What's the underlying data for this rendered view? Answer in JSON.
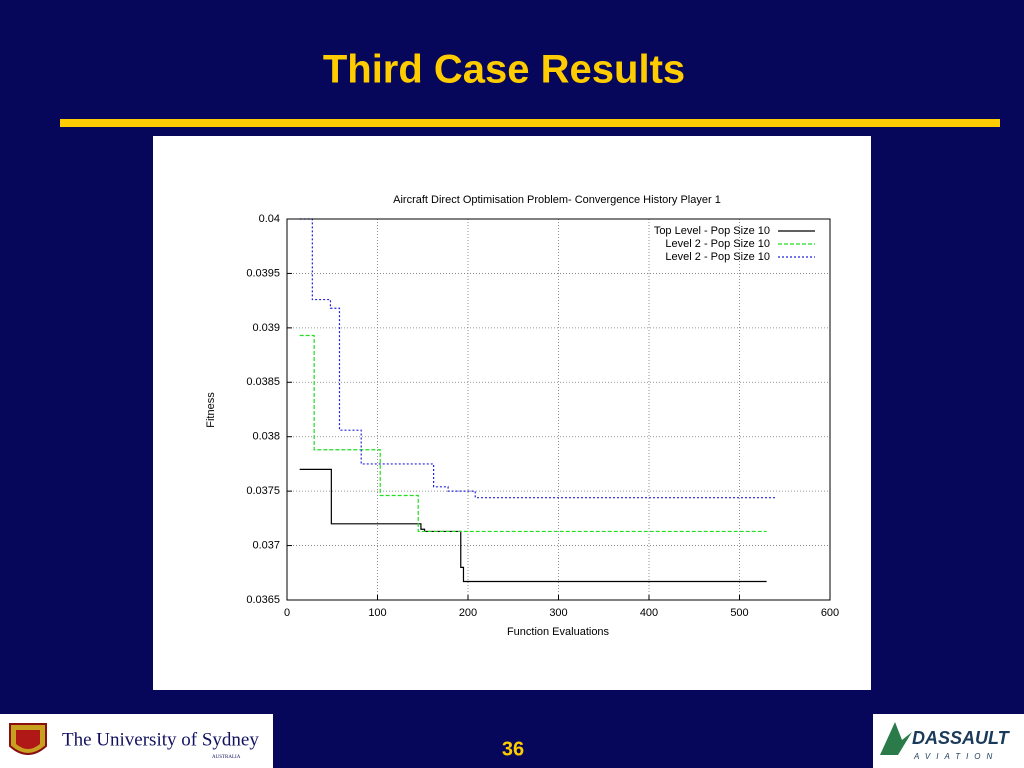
{
  "slide": {
    "title": "Third Case Results",
    "page_number": "36",
    "left_logo": {
      "name": "The University of Sydney",
      "country": "AUSTRALIA"
    },
    "right_logo": {
      "name": "DASSAULT",
      "sub": "AVIATION"
    }
  },
  "chart_data": {
    "type": "line",
    "title": "Aircraft Direct Optimisation Problem- Convergence History Player 1",
    "x_label": "Function Evaluations",
    "y_label": "Fitness",
    "xlim": [
      0,
      600
    ],
    "xticks": [
      0,
      100,
      200,
      300,
      400,
      500,
      600
    ],
    "ylim": [
      0.0365,
      0.04
    ],
    "yticks": [
      0.0365,
      0.037,
      0.0375,
      0.038,
      0.0385,
      0.039,
      0.0395,
      0.04
    ],
    "grid": true,
    "legend": "top-right",
    "series": [
      {
        "name": "Top Level - Pop Size 10",
        "color": "#000000",
        "line_style": "solid",
        "x": [
          14,
          49,
          49,
          148,
          148,
          152,
          152,
          192,
          192,
          195,
          195,
          530
        ],
        "values": [
          0.0377,
          0.0377,
          0.0372,
          0.0372,
          0.03715,
          0.03715,
          0.03713,
          0.03713,
          0.0368,
          0.0368,
          0.03667,
          0.03667
        ]
      },
      {
        "name": "Level 2 - Pop Size 10",
        "color": "#22dd22",
        "line_style": "dashed",
        "x": [
          14,
          30,
          30,
          103,
          103,
          145,
          145,
          530
        ],
        "values": [
          0.03893,
          0.03893,
          0.03788,
          0.03788,
          0.03746,
          0.03746,
          0.03713,
          0.03713
        ]
      },
      {
        "name": "Level 2 - Pop Size 10",
        "color": "#2222dd",
        "line_style": "dotted",
        "x": [
          14,
          28,
          28,
          48,
          48,
          58,
          58,
          82,
          82,
          162,
          162,
          178,
          178,
          208,
          208,
          540
        ],
        "values": [
          0.04,
          0.04,
          0.03926,
          0.03926,
          0.03918,
          0.03918,
          0.03806,
          0.03806,
          0.03775,
          0.03775,
          0.03754,
          0.03754,
          0.0375,
          0.0375,
          0.03744,
          0.03744
        ]
      }
    ]
  }
}
